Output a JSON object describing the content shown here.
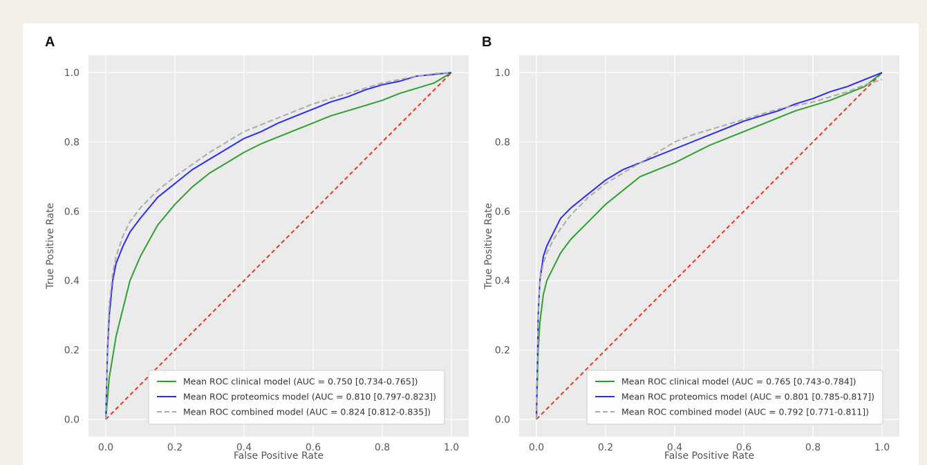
{
  "chart_data": [
    {
      "panel": "A",
      "type": "line",
      "xlabel": "False Positive Rate",
      "ylabel": "True Positive Rate",
      "xlim": [
        -0.05,
        1.05
      ],
      "ylim": [
        -0.05,
        1.05
      ],
      "xticks": [
        "0.0",
        "0.2",
        "0.4",
        "0.6",
        "0.8",
        "1.0"
      ],
      "yticks": [
        "0.0",
        "0.2",
        "0.4",
        "0.6",
        "0.8",
        "1.0"
      ],
      "grid": true,
      "legend_position": "bottom-right",
      "series": [
        {
          "name": "Mean ROC clinical model (AUC = 0.750 [0.734-0.765])",
          "color": "#2ca02c",
          "style": "solid",
          "x": [
            0,
            0.01,
            0.02,
            0.03,
            0.05,
            0.07,
            0.1,
            0.15,
            0.2,
            0.25,
            0.3,
            0.35,
            0.4,
            0.45,
            0.5,
            0.55,
            0.6,
            0.65,
            0.7,
            0.75,
            0.8,
            0.85,
            0.9,
            0.95,
            1.0
          ],
          "y": [
            0,
            0.12,
            0.18,
            0.24,
            0.32,
            0.4,
            0.47,
            0.56,
            0.62,
            0.67,
            0.71,
            0.74,
            0.77,
            0.795,
            0.815,
            0.835,
            0.855,
            0.875,
            0.89,
            0.905,
            0.92,
            0.94,
            0.955,
            0.97,
            1.0
          ]
        },
        {
          "name": "Mean ROC proteomics model (AUC = 0.810 [0.797-0.823])",
          "color": "#2b2bf0",
          "style": "solid",
          "x": [
            0,
            0.005,
            0.01,
            0.02,
            0.03,
            0.05,
            0.07,
            0.1,
            0.15,
            0.2,
            0.25,
            0.3,
            0.35,
            0.4,
            0.45,
            0.5,
            0.55,
            0.6,
            0.65,
            0.7,
            0.75,
            0.8,
            0.85,
            0.9,
            0.95,
            1.0
          ],
          "y": [
            0,
            0.2,
            0.3,
            0.4,
            0.45,
            0.5,
            0.54,
            0.58,
            0.64,
            0.68,
            0.72,
            0.75,
            0.78,
            0.81,
            0.83,
            0.855,
            0.875,
            0.895,
            0.915,
            0.93,
            0.95,
            0.965,
            0.975,
            0.99,
            0.995,
            1.0
          ]
        },
        {
          "name": "Mean ROC combined model (AUC = 0.824 [0.812-0.835])",
          "color": "#aaaaaa",
          "style": "dashed",
          "x": [
            0,
            0.005,
            0.01,
            0.02,
            0.03,
            0.05,
            0.07,
            0.1,
            0.15,
            0.2,
            0.25,
            0.3,
            0.35,
            0.4,
            0.45,
            0.5,
            0.55,
            0.6,
            0.65,
            0.7,
            0.75,
            0.8,
            0.85,
            0.9,
            0.95,
            1.0
          ],
          "y": [
            0,
            0.22,
            0.33,
            0.42,
            0.47,
            0.53,
            0.57,
            0.61,
            0.66,
            0.7,
            0.735,
            0.77,
            0.8,
            0.83,
            0.85,
            0.87,
            0.89,
            0.91,
            0.925,
            0.94,
            0.955,
            0.97,
            0.98,
            0.99,
            0.997,
            1.0
          ]
        },
        {
          "name": "",
          "color": "#e8322a",
          "style": "dashed",
          "x": [
            0,
            1
          ],
          "y": [
            0,
            1
          ]
        }
      ]
    },
    {
      "panel": "B",
      "type": "line",
      "xlabel": "False Positive Rate",
      "ylabel": "True Positive Rate",
      "xlim": [
        -0.05,
        1.05
      ],
      "ylim": [
        -0.05,
        1.05
      ],
      "xticks": [
        "0.0",
        "0.2",
        "0.4",
        "0.6",
        "0.8",
        "1.0"
      ],
      "yticks": [
        "0.0",
        "0.2",
        "0.4",
        "0.6",
        "0.8",
        "1.0"
      ],
      "grid": true,
      "legend_position": "bottom-right",
      "series": [
        {
          "name": "Mean ROC clinical model (AUC = 0.765 [0.743-0.784])",
          "color": "#2ca02c",
          "style": "solid",
          "x": [
            0,
            0.005,
            0.01,
            0.02,
            0.03,
            0.05,
            0.07,
            0.1,
            0.15,
            0.2,
            0.25,
            0.3,
            0.35,
            0.4,
            0.45,
            0.5,
            0.55,
            0.6,
            0.65,
            0.7,
            0.75,
            0.8,
            0.85,
            0.9,
            0.95,
            1.0
          ],
          "y": [
            0,
            0.2,
            0.28,
            0.36,
            0.4,
            0.44,
            0.48,
            0.52,
            0.57,
            0.62,
            0.66,
            0.7,
            0.72,
            0.74,
            0.765,
            0.79,
            0.81,
            0.83,
            0.85,
            0.87,
            0.89,
            0.905,
            0.92,
            0.94,
            0.96,
            1.0
          ]
        },
        {
          "name": "Mean ROC proteomics model (AUC = 0.801 [0.785-0.817])",
          "color": "#2b2bf0",
          "style": "solid",
          "x": [
            0,
            0.005,
            0.01,
            0.02,
            0.03,
            0.05,
            0.07,
            0.1,
            0.15,
            0.2,
            0.25,
            0.3,
            0.35,
            0.4,
            0.45,
            0.5,
            0.55,
            0.6,
            0.65,
            0.7,
            0.75,
            0.8,
            0.85,
            0.9,
            0.95,
            1.0
          ],
          "y": [
            0,
            0.3,
            0.4,
            0.47,
            0.5,
            0.54,
            0.58,
            0.61,
            0.65,
            0.69,
            0.72,
            0.74,
            0.76,
            0.78,
            0.8,
            0.82,
            0.84,
            0.86,
            0.875,
            0.89,
            0.91,
            0.925,
            0.945,
            0.96,
            0.98,
            1.0
          ]
        },
        {
          "name": "Mean ROC combined model (AUC = 0.792 [0.771-0.811])",
          "color": "#aaaaaa",
          "style": "dashed",
          "x": [
            0,
            0.005,
            0.01,
            0.02,
            0.03,
            0.05,
            0.07,
            0.1,
            0.15,
            0.2,
            0.25,
            0.3,
            0.35,
            0.4,
            0.45,
            0.5,
            0.55,
            0.6,
            0.65,
            0.7,
            0.75,
            0.8,
            0.85,
            0.9,
            0.95,
            1.0
          ],
          "y": [
            0,
            0.3,
            0.4,
            0.45,
            0.48,
            0.52,
            0.55,
            0.59,
            0.64,
            0.68,
            0.71,
            0.74,
            0.77,
            0.8,
            0.82,
            0.835,
            0.85,
            0.865,
            0.88,
            0.895,
            0.905,
            0.915,
            0.93,
            0.945,
            0.965,
            0.98
          ]
        },
        {
          "name": "",
          "color": "#e8322a",
          "style": "dashed",
          "x": [
            0,
            1
          ],
          "y": [
            0,
            1
          ]
        }
      ]
    }
  ]
}
